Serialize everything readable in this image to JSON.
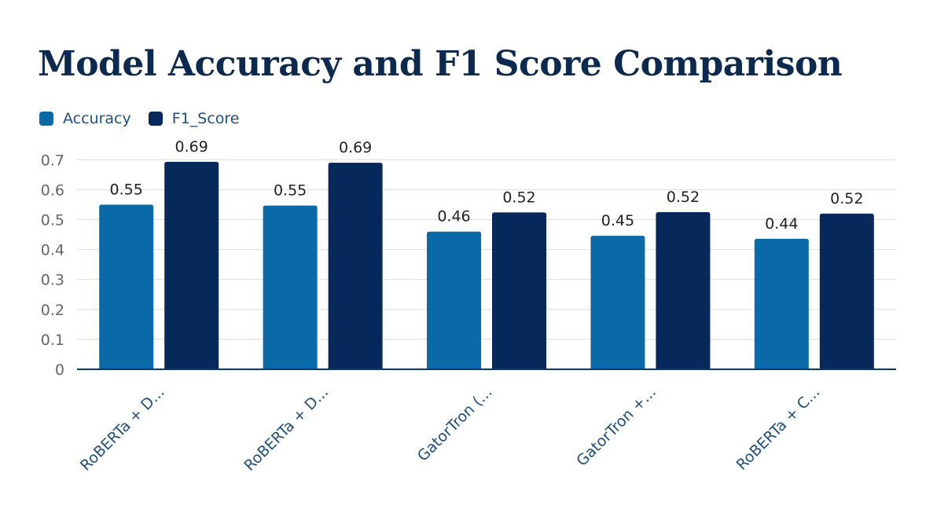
{
  "chart_data": {
    "type": "bar",
    "title": "Model Accuracy and F1 Score Comparison",
    "categories": [
      "RoBERTa + D...",
      "RoBERTa + D...",
      "GatorTron (...",
      "GatorTron +...",
      "RoBERTa + C..."
    ],
    "series": [
      {
        "name": "Accuracy",
        "color": "#0a6aa8",
        "values": [
          0.55,
          0.547,
          0.46,
          0.446,
          0.436
        ],
        "labels": [
          "0.55",
          "0.55",
          "0.46",
          "0.45",
          "0.44"
        ]
      },
      {
        "name": "F1_Score",
        "color": "#06285a",
        "values": [
          0.693,
          0.69,
          0.524,
          0.525,
          0.52
        ],
        "labels": [
          "0.69",
          "0.69",
          "0.52",
          "0.52",
          "0.52"
        ]
      }
    ],
    "yticks": [
      "0",
      "0.1",
      "0.2",
      "0.3",
      "0.4",
      "0.5",
      "0.6",
      "0.7"
    ],
    "ylim": [
      0,
      0.7
    ],
    "grid": true,
    "legend": "top-left"
  }
}
